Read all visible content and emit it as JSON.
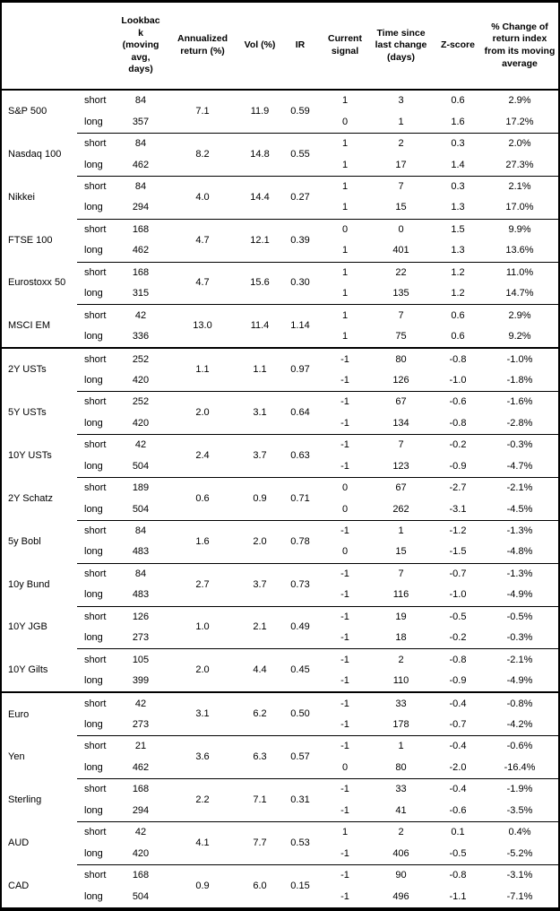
{
  "table": {
    "headers": {
      "asset": "",
      "type": "",
      "lookback": "Lookback (moving avg, days)",
      "annualized_return": "Annualized return (%)",
      "vol": "Vol (%)",
      "ir": "IR",
      "current_signal": "Current signal",
      "time_since": "Time since last change (days)",
      "z_score": "Z-score",
      "pct_change": "% Change of return index from its moving average"
    },
    "assets": [
      {
        "name": "S&P 500",
        "section_start": false,
        "annualized_return": "7.1",
        "vol": "11.9",
        "ir": "0.59",
        "rows": [
          {
            "type": "short",
            "lookback": "84",
            "signal": "1",
            "time_since": "3",
            "z_score": "0.6",
            "pct_change": "2.9%"
          },
          {
            "type": "long",
            "lookback": "357",
            "signal": "0",
            "time_since": "1",
            "z_score": "1.6",
            "pct_change": "17.2%"
          }
        ]
      },
      {
        "name": "Nasdaq 100",
        "section_start": false,
        "annualized_return": "8.2",
        "vol": "14.8",
        "ir": "0.55",
        "rows": [
          {
            "type": "short",
            "lookback": "84",
            "signal": "1",
            "time_since": "2",
            "z_score": "0.3",
            "pct_change": "2.0%"
          },
          {
            "type": "long",
            "lookback": "462",
            "signal": "1",
            "time_since": "17",
            "z_score": "1.4",
            "pct_change": "27.3%"
          }
        ]
      },
      {
        "name": "Nikkei",
        "section_start": false,
        "annualized_return": "4.0",
        "vol": "14.4",
        "ir": "0.27",
        "rows": [
          {
            "type": "short",
            "lookback": "84",
            "signal": "1",
            "time_since": "7",
            "z_score": "0.3",
            "pct_change": "2.1%"
          },
          {
            "type": "long",
            "lookback": "294",
            "signal": "1",
            "time_since": "15",
            "z_score": "1.3",
            "pct_change": "17.0%"
          }
        ]
      },
      {
        "name": "FTSE 100",
        "section_start": false,
        "annualized_return": "4.7",
        "vol": "12.1",
        "ir": "0.39",
        "rows": [
          {
            "type": "short",
            "lookback": "168",
            "signal": "0",
            "time_since": "0",
            "z_score": "1.5",
            "pct_change": "9.9%"
          },
          {
            "type": "long",
            "lookback": "462",
            "signal": "1",
            "time_since": "401",
            "z_score": "1.3",
            "pct_change": "13.6%"
          }
        ]
      },
      {
        "name": "Eurostoxx 50",
        "section_start": false,
        "annualized_return": "4.7",
        "vol": "15.6",
        "ir": "0.30",
        "rows": [
          {
            "type": "short",
            "lookback": "168",
            "signal": "1",
            "time_since": "22",
            "z_score": "1.2",
            "pct_change": "11.0%"
          },
          {
            "type": "long",
            "lookback": "315",
            "signal": "1",
            "time_since": "135",
            "z_score": "1.2",
            "pct_change": "14.7%"
          }
        ]
      },
      {
        "name": "MSCI EM",
        "section_start": false,
        "annualized_return": "13.0",
        "vol": "11.4",
        "ir": "1.14",
        "rows": [
          {
            "type": "short",
            "lookback": "42",
            "signal": "1",
            "time_since": "7",
            "z_score": "0.6",
            "pct_change": "2.9%"
          },
          {
            "type": "long",
            "lookback": "336",
            "signal": "1",
            "time_since": "75",
            "z_score": "0.6",
            "pct_change": "9.2%"
          }
        ]
      },
      {
        "name": "2Y USTs",
        "section_start": true,
        "annualized_return": "1.1",
        "vol": "1.1",
        "ir": "0.97",
        "rows": [
          {
            "type": "short",
            "lookback": "252",
            "signal": "-1",
            "time_since": "80",
            "z_score": "-0.8",
            "pct_change": "-1.0%"
          },
          {
            "type": "long",
            "lookback": "420",
            "signal": "-1",
            "time_since": "126",
            "z_score": "-1.0",
            "pct_change": "-1.8%"
          }
        ]
      },
      {
        "name": "5Y USTs",
        "section_start": false,
        "annualized_return": "2.0",
        "vol": "3.1",
        "ir": "0.64",
        "rows": [
          {
            "type": "short",
            "lookback": "252",
            "signal": "-1",
            "time_since": "67",
            "z_score": "-0.6",
            "pct_change": "-1.6%"
          },
          {
            "type": "long",
            "lookback": "420",
            "signal": "-1",
            "time_since": "134",
            "z_score": "-0.8",
            "pct_change": "-2.8%"
          }
        ]
      },
      {
        "name": "10Y USTs",
        "section_start": false,
        "annualized_return": "2.4",
        "vol": "3.7",
        "ir": "0.63",
        "rows": [
          {
            "type": "short",
            "lookback": "42",
            "signal": "-1",
            "time_since": "7",
            "z_score": "-0.2",
            "pct_change": "-0.3%"
          },
          {
            "type": "long",
            "lookback": "504",
            "signal": "-1",
            "time_since": "123",
            "z_score": "-0.9",
            "pct_change": "-4.7%"
          }
        ]
      },
      {
        "name": "2Y Schatz",
        "section_start": false,
        "annualized_return": "0.6",
        "vol": "0.9",
        "ir": "0.71",
        "rows": [
          {
            "type": "short",
            "lookback": "189",
            "signal": "0",
            "time_since": "67",
            "z_score": "-2.7",
            "pct_change": "-2.1%"
          },
          {
            "type": "long",
            "lookback": "504",
            "signal": "0",
            "time_since": "262",
            "z_score": "-3.1",
            "pct_change": "-4.5%"
          }
        ]
      },
      {
        "name": "5y Bobl",
        "section_start": false,
        "annualized_return": "1.6",
        "vol": "2.0",
        "ir": "0.78",
        "rows": [
          {
            "type": "short",
            "lookback": "84",
            "signal": "-1",
            "time_since": "1",
            "z_score": "-1.2",
            "pct_change": "-1.3%"
          },
          {
            "type": "long",
            "lookback": "483",
            "signal": "0",
            "time_since": "15",
            "z_score": "-1.5",
            "pct_change": "-4.8%"
          }
        ]
      },
      {
        "name": "10y Bund",
        "section_start": false,
        "annualized_return": "2.7",
        "vol": "3.7",
        "ir": "0.73",
        "rows": [
          {
            "type": "short",
            "lookback": "84",
            "signal": "-1",
            "time_since": "7",
            "z_score": "-0.7",
            "pct_change": "-1.3%"
          },
          {
            "type": "long",
            "lookback": "483",
            "signal": "-1",
            "time_since": "116",
            "z_score": "-1.0",
            "pct_change": "-4.9%"
          }
        ]
      },
      {
        "name": "10Y JGB",
        "section_start": false,
        "annualized_return": "1.0",
        "vol": "2.1",
        "ir": "0.49",
        "rows": [
          {
            "type": "short",
            "lookback": "126",
            "signal": "-1",
            "time_since": "19",
            "z_score": "-0.5",
            "pct_change": "-0.5%"
          },
          {
            "type": "long",
            "lookback": "273",
            "signal": "-1",
            "time_since": "18",
            "z_score": "-0.2",
            "pct_change": "-0.3%"
          }
        ]
      },
      {
        "name": "10Y Gilts",
        "section_start": false,
        "annualized_return": "2.0",
        "vol": "4.4",
        "ir": "0.45",
        "rows": [
          {
            "type": "short",
            "lookback": "105",
            "signal": "-1",
            "time_since": "2",
            "z_score": "-0.8",
            "pct_change": "-2.1%"
          },
          {
            "type": "long",
            "lookback": "399",
            "signal": "-1",
            "time_since": "110",
            "z_score": "-0.9",
            "pct_change": "-4.9%"
          }
        ]
      },
      {
        "name": "Euro",
        "section_start": true,
        "annualized_return": "3.1",
        "vol": "6.2",
        "ir": "0.50",
        "rows": [
          {
            "type": "short",
            "lookback": "42",
            "signal": "-1",
            "time_since": "33",
            "z_score": "-0.4",
            "pct_change": "-0.8%"
          },
          {
            "type": "long",
            "lookback": "273",
            "signal": "-1",
            "time_since": "178",
            "z_score": "-0.7",
            "pct_change": "-4.2%"
          }
        ]
      },
      {
        "name": "Yen",
        "section_start": false,
        "annualized_return": "3.6",
        "vol": "6.3",
        "ir": "0.57",
        "rows": [
          {
            "type": "short",
            "lookback": "21",
            "signal": "-1",
            "time_since": "1",
            "z_score": "-0.4",
            "pct_change": "-0.6%"
          },
          {
            "type": "long",
            "lookback": "462",
            "signal": "0",
            "time_since": "80",
            "z_score": "-2.0",
            "pct_change": "-16.4%"
          }
        ]
      },
      {
        "name": "Sterling",
        "section_start": false,
        "annualized_return": "2.2",
        "vol": "7.1",
        "ir": "0.31",
        "rows": [
          {
            "type": "short",
            "lookback": "168",
            "signal": "-1",
            "time_since": "33",
            "z_score": "-0.4",
            "pct_change": "-1.9%"
          },
          {
            "type": "long",
            "lookback": "294",
            "signal": "-1",
            "time_since": "41",
            "z_score": "-0.6",
            "pct_change": "-3.5%"
          }
        ]
      },
      {
        "name": "AUD",
        "section_start": false,
        "annualized_return": "4.1",
        "vol": "7.7",
        "ir": "0.53",
        "rows": [
          {
            "type": "short",
            "lookback": "42",
            "signal": "1",
            "time_since": "2",
            "z_score": "0.1",
            "pct_change": "0.4%"
          },
          {
            "type": "long",
            "lookback": "420",
            "signal": "-1",
            "time_since": "406",
            "z_score": "-0.5",
            "pct_change": "-5.2%"
          }
        ]
      },
      {
        "name": "CAD",
        "section_start": false,
        "annualized_return": "0.9",
        "vol": "6.0",
        "ir": "0.15",
        "rows": [
          {
            "type": "short",
            "lookback": "168",
            "signal": "-1",
            "time_since": "90",
            "z_score": "-0.8",
            "pct_change": "-3.1%"
          },
          {
            "type": "long",
            "lookback": "504",
            "signal": "-1",
            "time_since": "496",
            "z_score": "-1.1",
            "pct_change": "-7.1%"
          }
        ]
      }
    ]
  }
}
